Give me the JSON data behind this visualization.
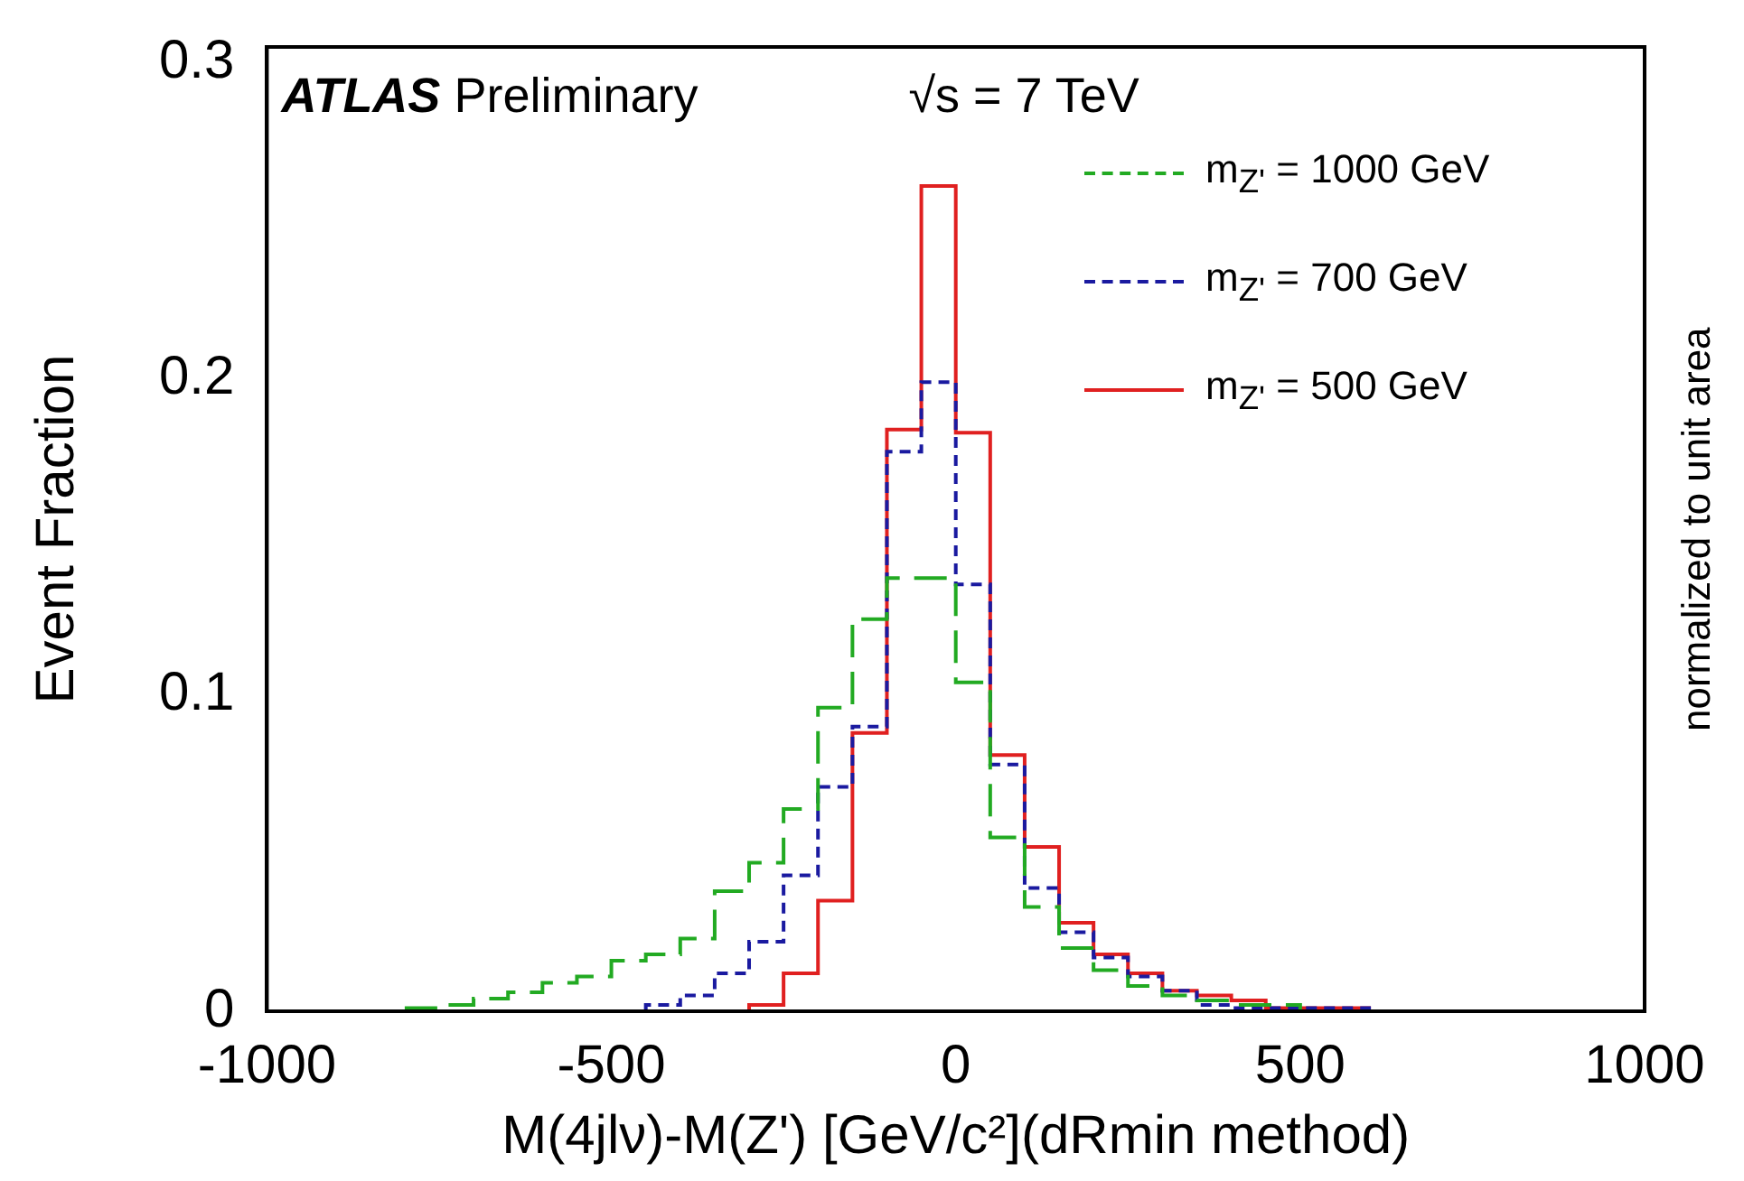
{
  "chart_data": {
    "type": "histogram",
    "xlabel": "M(4jlν)-M(Z') [GeV/c²](dRmin method)",
    "ylabel": "Event Fraction",
    "bins": [
      -1000,
      -950,
      -900,
      -850,
      -800,
      -750,
      -700,
      -650,
      -600,
      -550,
      -500,
      -450,
      -400,
      -350,
      -300,
      -250,
      -200,
      -150,
      -100,
      -50,
      0,
      50,
      100,
      150,
      200,
      250,
      300,
      350,
      400,
      450,
      500,
      550,
      600,
      650,
      700,
      750,
      800,
      850,
      900,
      950,
      1000
    ],
    "series": [
      {
        "name": "m$_{Z'}$ = 1000 GeV",
        "color": "#22aa22",
        "line_style": "dashed",
        "values": [
          0,
          0,
          0,
          0,
          0.001,
          0.002,
          0.004,
          0.006,
          0.009,
          0.011,
          0.016,
          0.018,
          0.023,
          0.038,
          0.047,
          0.064,
          0.096,
          0.124,
          0.137,
          0.137,
          0.104,
          0.055,
          0.033,
          0.02,
          0.013,
          0.008,
          0.005,
          0.0034,
          0.002,
          0.002,
          0,
          0,
          0,
          0,
          0,
          0,
          0,
          0,
          0,
          0
        ]
      },
      {
        "name": "m$_{Z'}$ = 700 GeV",
        "color": "#1a1aa0",
        "line_style": "dotted",
        "values": [
          0,
          0,
          0,
          0,
          0,
          0,
          0,
          0,
          0,
          0,
          0,
          0.002,
          0.005,
          0.012,
          0.022,
          0.043,
          0.071,
          0.09,
          0.177,
          0.199,
          0.135,
          0.078,
          0.039,
          0.025,
          0.017,
          0.011,
          0.0065,
          0.002,
          0.001,
          0.001,
          0.001,
          0.001,
          0,
          0,
          0,
          0,
          0,
          0,
          0,
          0
        ]
      },
      {
        "name": "m$_{Z'}$ = 500 GeV",
        "color": "#e02020",
        "line_style": "solid",
        "values": [
          0,
          0,
          0,
          0,
          0,
          0,
          0,
          0,
          0,
          0,
          0,
          0,
          0,
          0,
          0.002,
          0.012,
          0.035,
          0.088,
          0.184,
          0.261,
          0.183,
          0.081,
          0.052,
          0.028,
          0.018,
          0.012,
          0.0065,
          0.005,
          0.0034,
          0.001,
          0.001,
          0.001,
          0,
          0,
          0,
          0,
          0,
          0,
          0,
          0
        ]
      }
    ],
    "xlim": [
      -1000,
      1000
    ],
    "xticks": [
      -1000,
      -500,
      0,
      500,
      1000
    ],
    "ylim": [
      0,
      0.305
    ],
    "yticks": [
      0,
      0.1,
      0.2,
      0.3
    ],
    "legend": "top right",
    "grid": false,
    "annotations": [
      "ATLAS Preliminary",
      "√s = 7 TeV",
      "normalized to unit area"
    ]
  }
}
